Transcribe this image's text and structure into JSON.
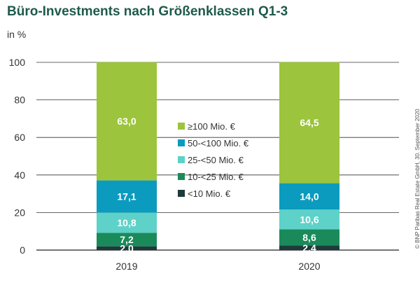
{
  "chart_data": {
    "type": "bar",
    "stacked": true,
    "title": "Büro-Investments nach Größenklassen Q1-3",
    "ylabel": "in %",
    "ylim": [
      0,
      100
    ],
    "yticks": [
      "0",
      "20",
      "40",
      "60",
      "80",
      "100"
    ],
    "categories": [
      "2019",
      "2020"
    ],
    "series": [
      {
        "name": "<10 Mio. €",
        "color": "#1f3a3a",
        "values": [
          2.0,
          2.4
        ],
        "labels": [
          "2,0",
          "2,4"
        ]
      },
      {
        "name": "10-<25 Mio. €",
        "color": "#1a8a5a",
        "values": [
          7.2,
          8.6
        ],
        "labels": [
          "7,2",
          "8,6"
        ]
      },
      {
        "name": "25-<50 Mio. €",
        "color": "#5ed1c8",
        "values": [
          10.8,
          10.6
        ],
        "labels": [
          "10,8",
          "10,6"
        ]
      },
      {
        "name": "50-<100 Mio. €",
        "color": "#0a9bbf",
        "values": [
          17.1,
          14.0
        ],
        "labels": [
          "17,1",
          "14,0"
        ]
      },
      {
        "name": "≥100 Mio. €",
        "color": "#9cc43c",
        "values": [
          63.0,
          64.5
        ],
        "labels": [
          "63,0",
          "64,5"
        ]
      }
    ],
    "legend_order": [
      "≥100 Mio. €",
      "50-<100 Mio. €",
      "25-<50 Mio. €",
      "10-<25 Mio. €",
      "<10 Mio. €"
    ],
    "legend": "center",
    "grid": true
  },
  "copyright": "© BNP Paribas Real Estate GmbH, 30. September 2020"
}
